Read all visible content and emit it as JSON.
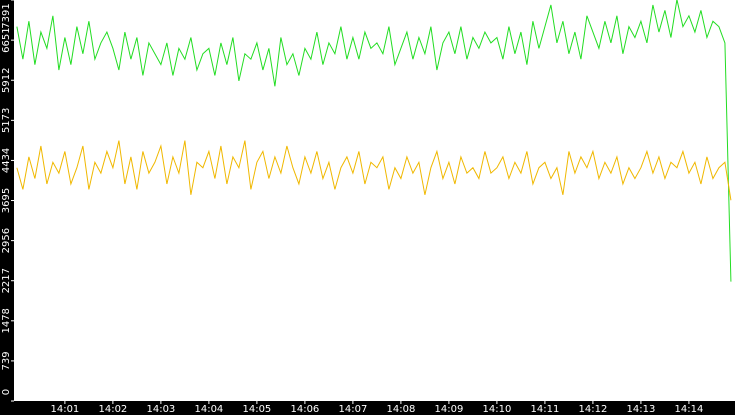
{
  "chart_data": {
    "type": "line",
    "x": [
      840,
      840.125,
      840.25,
      840.375,
      840.5,
      840.625,
      840.75,
      840.875,
      841,
      841.125,
      841.25,
      841.375,
      841.5,
      841.625,
      841.75,
      841.875,
      842,
      842.125,
      842.25,
      842.375,
      842.5,
      842.625,
      842.75,
      842.875,
      843,
      843.125,
      843.25,
      843.375,
      843.5,
      843.625,
      843.75,
      843.875,
      844,
      844.125,
      844.25,
      844.375,
      844.5,
      844.625,
      844.75,
      844.875,
      845,
      845.125,
      845.25,
      845.375,
      845.5,
      845.625,
      845.75,
      845.875,
      846,
      846.125,
      846.25,
      846.375,
      846.5,
      846.625,
      846.75,
      846.875,
      847,
      847.125,
      847.25,
      847.375,
      847.5,
      847.625,
      847.75,
      847.875,
      848,
      848.125,
      848.25,
      848.375,
      848.5,
      848.625,
      848.75,
      848.875,
      849,
      849.125,
      849.25,
      849.375,
      849.5,
      849.625,
      849.75,
      849.875,
      850,
      850.125,
      850.25,
      850.375,
      850.5,
      850.625,
      850.75,
      850.875,
      851,
      851.125,
      851.25,
      851.375,
      851.5,
      851.625,
      851.75,
      851.875,
      852,
      852.125,
      852.25,
      852.375,
      852.5,
      852.625,
      852.75,
      852.875,
      853,
      853.125,
      853.25,
      853.375,
      853.5,
      853.625,
      853.75,
      853.875,
      854,
      854.125,
      854.25,
      854.375,
      854.5,
      854.625,
      854.75,
      854.875
    ],
    "series": [
      {
        "color": "#22dd22",
        "values": [
          6900,
          6300,
          7000,
          6200,
          6800,
          6500,
          7100,
          6100,
          6700,
          6200,
          6900,
          6400,
          7000,
          6300,
          6600,
          6800,
          6500,
          6100,
          6800,
          6300,
          6700,
          6000,
          6600,
          6400,
          6200,
          6600,
          6000,
          6500,
          6300,
          6700,
          6100,
          6400,
          6500,
          6000,
          6600,
          6200,
          6700,
          5900,
          6400,
          6300,
          6600,
          6100,
          6500,
          5800,
          6700,
          6200,
          6400,
          6000,
          6500,
          6300,
          6800,
          6200,
          6600,
          6400,
          6900,
          6300,
          6700,
          6300,
          6800,
          6500,
          6600,
          6400,
          6900,
          6200,
          6500,
          6800,
          6300,
          6700,
          6400,
          6900,
          6100,
          6600,
          6800,
          6400,
          6900,
          6300,
          6700,
          6500,
          6800,
          6600,
          6700,
          6300,
          6900,
          6400,
          6800,
          6200,
          7000,
          6500,
          6900,
          7300,
          6600,
          7000,
          6400,
          6800,
          6300,
          7100,
          6800,
          6500,
          7000,
          6600,
          7100,
          6400,
          6900,
          6700,
          7000,
          6600,
          7300,
          6800,
          7200,
          6700,
          7400,
          6900,
          7100,
          6800,
          7200,
          6700,
          7000,
          6900,
          6600,
          2200
        ]
      },
      {
        "color": "#f0b800",
        "values": [
          4300,
          3900,
          4500,
          4100,
          4700,
          4000,
          4400,
          4200,
          4600,
          4000,
          4300,
          4700,
          3900,
          4400,
          4200,
          4600,
          4300,
          4800,
          4000,
          4500,
          3900,
          4600,
          4200,
          4400,
          4700,
          4000,
          4500,
          4200,
          4800,
          3800,
          4400,
          4300,
          4600,
          4100,
          4700,
          4000,
          4500,
          4300,
          4800,
          3900,
          4400,
          4600,
          4100,
          4500,
          4200,
          4700,
          4300,
          4000,
          4500,
          4200,
          4600,
          4100,
          4400,
          3900,
          4300,
          4500,
          4200,
          4600,
          4000,
          4400,
          4300,
          4500,
          3900,
          4300,
          4100,
          4500,
          4200,
          4400,
          3800,
          4300,
          4600,
          4100,
          4400,
          4000,
          4500,
          4200,
          4300,
          4100,
          4600,
          4200,
          4300,
          4500,
          4100,
          4400,
          4200,
          4600,
          4000,
          4300,
          4400,
          4100,
          4300,
          3800,
          4600,
          4200,
          4500,
          4300,
          4600,
          4100,
          4400,
          4200,
          4500,
          4000,
          4300,
          4100,
          4300,
          4600,
          4200,
          4500,
          4100,
          4400,
          4300,
          4600,
          4200,
          4400,
          4000,
          4500,
          4100,
          4300,
          4400,
          3700
        ]
      }
    ],
    "xlim": [
      839.94,
      854.96
    ],
    "xticks": [
      {
        "value": 841,
        "label": "14:01"
      },
      {
        "value": 842,
        "label": "14:02"
      },
      {
        "value": 843,
        "label": "14:03"
      },
      {
        "value": 844,
        "label": "14:04"
      },
      {
        "value": 845,
        "label": "14:05"
      },
      {
        "value": 846,
        "label": "14:06"
      },
      {
        "value": 847,
        "label": "14:07"
      },
      {
        "value": 848,
        "label": "14:08"
      },
      {
        "value": 849,
        "label": "14:09"
      },
      {
        "value": 850,
        "label": "14:10"
      },
      {
        "value": 851,
        "label": "14:11"
      },
      {
        "value": 852,
        "label": "14:12"
      },
      {
        "value": 853,
        "label": "14:13"
      },
      {
        "value": 854,
        "label": "14:14"
      }
    ],
    "ylim": [
      0,
      7391
    ],
    "yticks": [
      0,
      739,
      1478,
      2217,
      2956,
      3695,
      4434,
      5173,
      5912,
      6651,
      7391
    ]
  }
}
